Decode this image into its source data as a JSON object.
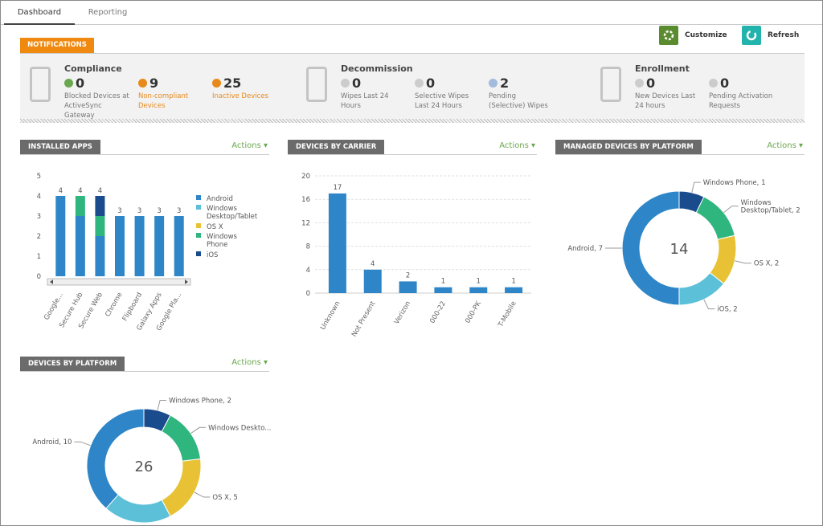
{
  "tabs": [
    "Dashboard",
    "Reporting"
  ],
  "buttons": [
    {
      "label": "Customize",
      "color": "#5b8b2f"
    },
    {
      "label": "Refresh",
      "color": "#22b3ad"
    }
  ],
  "notifications": {
    "label": "NOTIFICATIONS",
    "groups": [
      {
        "title": "Compliance",
        "items": [
          {
            "value": 0,
            "label": "Blocked Devices at ActiveSync Gateway",
            "color": "#6aa84f",
            "label_color": "#777777"
          },
          {
            "value": 9,
            "label": "Non-compliant Devices",
            "color": "#e8891b",
            "label_color": "#e8891b"
          },
          {
            "value": 25,
            "label": "Inactive Devices",
            "color": "#e8891b",
            "label_color": "#e8891b"
          }
        ]
      },
      {
        "title": "Decommission",
        "items": [
          {
            "value": 0,
            "label": "Wipes Last 24 Hours",
            "color": "#cccccc",
            "label_color": "#777777"
          },
          {
            "value": 0,
            "label": "Selective Wipes Last 24 Hours",
            "color": "#cccccc",
            "label_color": "#777777"
          },
          {
            "value": 2,
            "label": "Pending (Selective) Wipes",
            "color": "#a3bbdd",
            "label_color": "#777777"
          }
        ]
      },
      {
        "title": "Enrollment",
        "items": [
          {
            "value": 0,
            "label": "New Devices Last 24 hours",
            "color": "#cccccc",
            "label_color": "#777777"
          },
          {
            "value": 0,
            "label": "Pending Activation Requests",
            "color": "#cccccc",
            "label_color": "#777777"
          }
        ]
      }
    ]
  },
  "panels": [
    {
      "title": "INSTALLED APPS",
      "actions": "Actions",
      "chart": {
        "type": "stacked_bar",
        "categories": [
          "Google...",
          "Secure Hub",
          "Secure Web",
          "Chrome",
          "Flipboard",
          "Galaxy Apps",
          "Google Pla..."
        ],
        "series": [
          {
            "name": "Android",
            "color": "#2e86c8",
            "values": [
              4,
              3,
              2,
              3,
              3,
              3,
              3
            ]
          },
          {
            "name": "Windows Desktop/Tablet",
            "color": "#5bc0d8",
            "values": [
              0,
              0,
              0,
              0,
              0,
              0,
              0
            ]
          },
          {
            "name": "OS X",
            "color": "#e8c234",
            "values": [
              0,
              0,
              0,
              0,
              0,
              0,
              0
            ]
          },
          {
            "name": "Windows Phone",
            "color": "#2fb57e",
            "values": [
              0,
              1,
              1,
              0,
              0,
              0,
              0
            ]
          },
          {
            "name": "iOS",
            "color": "#1a4b8c",
            "values": [
              0,
              0,
              1,
              0,
              0,
              0,
              0
            ]
          }
        ],
        "totals": [
          4,
          4,
          4,
          3,
          3,
          3,
          3
        ],
        "ylim": [
          0,
          5
        ],
        "yticks": [
          0,
          1,
          2,
          3,
          4,
          5
        ],
        "grid": false
      }
    },
    {
      "title": "DEVICES BY CARRIER",
      "actions": "Actions",
      "chart": {
        "type": "bar",
        "categories": [
          "Unknown",
          "Not Present",
          "Verizon",
          "000-22",
          "000-PK",
          "T-Mobile"
        ],
        "values": [
          17,
          4,
          2,
          1,
          1,
          1
        ],
        "color": "#2e86c8",
        "ylim": [
          0,
          20
        ],
        "yticks": [
          0,
          4,
          8,
          12,
          16,
          20
        ],
        "grid": true
      }
    },
    {
      "title": "MANAGED DEVICES BY PLATFORM",
      "actions": "Actions",
      "chart": {
        "type": "donut",
        "categories": [
          "Windows Phone",
          "Windows Desktop/Tablet",
          "OS X",
          "iOS",
          "Android"
        ],
        "values": [
          1,
          2,
          2,
          2,
          7
        ],
        "value_labels": [
          "Windows Phone, 1",
          "Windows Desktop/Tablet, 2",
          "OS X, 2",
          "iOS, 2",
          "Android, 7"
        ],
        "colors": [
          "#1a4b8c",
          "#2fb57e",
          "#e8c234",
          "#5bc0d8",
          "#2e86c8"
        ],
        "total": 14
      }
    },
    {
      "title": "DEVICES BY PLATFORM",
      "actions": "Actions",
      "chart": {
        "type": "donut",
        "categories": [
          "Windows Phone",
          "Windows Desktop/Tablet",
          "OS X",
          "iOS",
          "Android"
        ],
        "values": [
          2,
          4,
          5,
          5,
          10
        ],
        "value_labels": [
          "Windows Phone, 2",
          "Windows Deskto...",
          "OS X, 5",
          null,
          "Android, 10"
        ],
        "colors": [
          "#1a4b8c",
          "#2fb57e",
          "#e8c234",
          "#5bc0d8",
          "#2e86c8"
        ],
        "total": 26
      }
    }
  ]
}
